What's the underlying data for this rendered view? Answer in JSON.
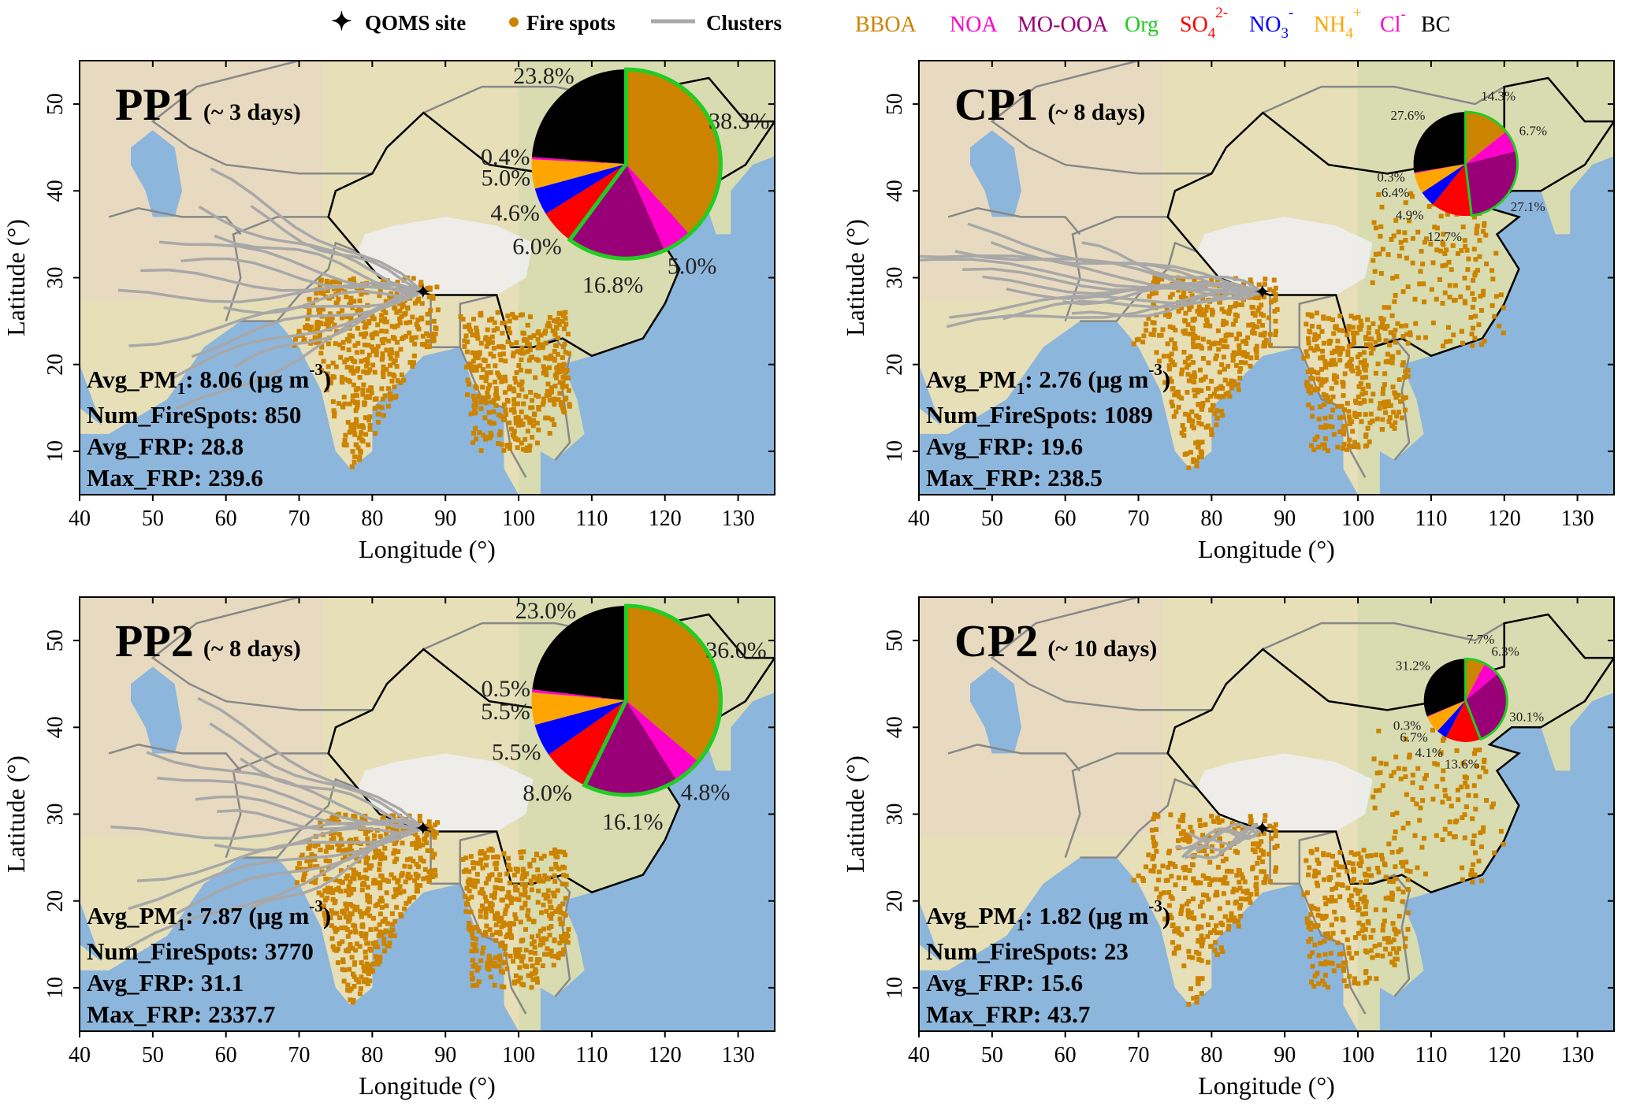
{
  "legend": {
    "qoms": "QOMS site",
    "fire": "Fire spots",
    "clusters": "Clusters",
    "components": [
      {
        "key": "BBOA",
        "label": "BBOA",
        "sup": "",
        "sub": "",
        "color": "#CC8400"
      },
      {
        "key": "NOA",
        "label": "NOA",
        "sup": "",
        "sub": "",
        "color": "#FF00CC"
      },
      {
        "key": "MOOOA",
        "label": "MO-OOA",
        "sup": "",
        "sub": "",
        "color": "#990077"
      },
      {
        "key": "Org",
        "label": "Org",
        "sup": "",
        "sub": "",
        "color": "#22CC22"
      },
      {
        "key": "SO4",
        "label": "SO",
        "sup": "2-",
        "sub": "4",
        "color": "#FF0000"
      },
      {
        "key": "NO3",
        "label": "NO",
        "sup": "-",
        "sub": "3",
        "color": "#0000FF"
      },
      {
        "key": "NH4",
        "label": "NH",
        "sup": "+",
        "sub": "4",
        "color": "#FFA500"
      },
      {
        "key": "Cl",
        "label": "Cl",
        "sup": "-",
        "sub": "",
        "color": "#FF00CC"
      },
      {
        "key": "BC",
        "label": "BC",
        "sup": "",
        "sub": "",
        "color": "#000000"
      }
    ]
  },
  "colors": {
    "ocean": "#8db6dc",
    "land": "#e6dfb8",
    "fire": "#cc8400",
    "cluster": "#a8a8a8",
    "org_outline": "#22cc22"
  },
  "chart_data": [
    {
      "type": "pie",
      "panel": "PP1",
      "duration": "(~ 3 days)",
      "xlabel": "Longitude (°)",
      "ylabel": "Latitude (°)",
      "xlim": [
        40,
        135
      ],
      "ylim": [
        5,
        55
      ],
      "xticks": [
        40,
        50,
        60,
        70,
        80,
        90,
        100,
        110,
        120,
        130
      ],
      "yticks": [
        10,
        20,
        30,
        40,
        50
      ],
      "slices": [
        38.3,
        5.0,
        16.8,
        6.0,
        4.6,
        5.0,
        0.4,
        23.8
      ],
      "labels": [
        "38.3%",
        "5.0%",
        "16.8%",
        "6.0%",
        "4.6%",
        "5.0%",
        "0.4%",
        "23.8%"
      ],
      "stats": {
        "pm1_label": "Avg_PM",
        "pm1_sub": "1",
        "pm1_value": ": 8.06 (μg m",
        "pm1_sup": "-3",
        "pm1_end": ")",
        "fire": "Num_FireSpots: 850",
        "avg_frp": "Avg_FRP: 28.8",
        "max_frp": "Max_FRP: 239.6"
      },
      "pie_size": 1.0,
      "fire_count": 850
    },
    {
      "type": "pie",
      "panel": "CP1",
      "duration": "(~ 8 days)",
      "xlabel": "Longitude (°)",
      "ylabel": "Latitude (°)",
      "xlim": [
        40,
        135
      ],
      "ylim": [
        5,
        55
      ],
      "xticks": [
        40,
        50,
        60,
        70,
        80,
        90,
        100,
        110,
        120,
        130
      ],
      "yticks": [
        10,
        20,
        30,
        40,
        50
      ],
      "slices": [
        14.3,
        6.7,
        27.1,
        12.7,
        4.9,
        6.4,
        0.3,
        27.6
      ],
      "labels": [
        "14.3%",
        "6.7%",
        "27.1%",
        "12.7%",
        "4.9%",
        "6.4%",
        "0.3%",
        "27.6%"
      ],
      "stats": {
        "pm1_label": "Avg_PM",
        "pm1_sub": "1",
        "pm1_value": ": 2.76 (μg m",
        "pm1_sup": "-3",
        "pm1_end": ")",
        "fire": "Num_FireSpots: 1089",
        "avg_frp": "Avg_FRP: 19.6",
        "max_frp": "Max_FRP: 238.5"
      },
      "pie_size": 0.55,
      "fire_count": 1089
    },
    {
      "type": "pie",
      "panel": "PP2",
      "duration": "(~ 8 days)",
      "xlabel": "Longitude (°)",
      "ylabel": "Latitude (°)",
      "xlim": [
        40,
        135
      ],
      "ylim": [
        5,
        55
      ],
      "xticks": [
        40,
        50,
        60,
        70,
        80,
        90,
        100,
        110,
        120,
        130
      ],
      "yticks": [
        10,
        20,
        30,
        40,
        50
      ],
      "slices": [
        36.0,
        4.8,
        16.1,
        8.0,
        5.5,
        5.5,
        0.5,
        23.0
      ],
      "labels": [
        "36.0%",
        "4.8%",
        "16.1%",
        "8.0%",
        "5.5%",
        "5.5%",
        "0.5%",
        "23.0%"
      ],
      "stats": {
        "pm1_label": "Avg_PM",
        "pm1_sub": "1",
        "pm1_value": ": 7.87 (μg m",
        "pm1_sup": "-3",
        "pm1_end": ")",
        "fire": "Num_FireSpots: 3770",
        "avg_frp": "Avg_FRP: 31.1",
        "max_frp": "Max_FRP: 2337.7"
      },
      "pie_size": 1.0,
      "fire_count": 3770
    },
    {
      "type": "pie",
      "panel": "CP2",
      "duration": "(~ 10 days)",
      "xlabel": "Longitude (°)",
      "ylabel": "Latitude (°)",
      "xlim": [
        40,
        135
      ],
      "ylim": [
        5,
        55
      ],
      "xticks": [
        40,
        50,
        60,
        70,
        80,
        90,
        100,
        110,
        120,
        130
      ],
      "yticks": [
        10,
        20,
        30,
        40,
        50
      ],
      "slices": [
        7.7,
        6.3,
        30.1,
        13.6,
        4.1,
        6.7,
        0.3,
        31.2
      ],
      "labels": [
        "7.7%",
        "6.3%",
        "30.1%",
        "13.6%",
        "4.1%",
        "6.7%",
        "0.3%",
        "31.2%"
      ],
      "stats": {
        "pm1_label": "Avg_PM",
        "pm1_sub": "1",
        "pm1_value": ": 1.82 (μg m",
        "pm1_sup": "-3",
        "pm1_end": ")",
        "fire": "Num_FireSpots: 23",
        "avg_frp": "Avg_FRP: 15.6",
        "max_frp": "Max_FRP: 43.7"
      },
      "pie_size": 0.44,
      "fire_count": 23
    }
  ]
}
